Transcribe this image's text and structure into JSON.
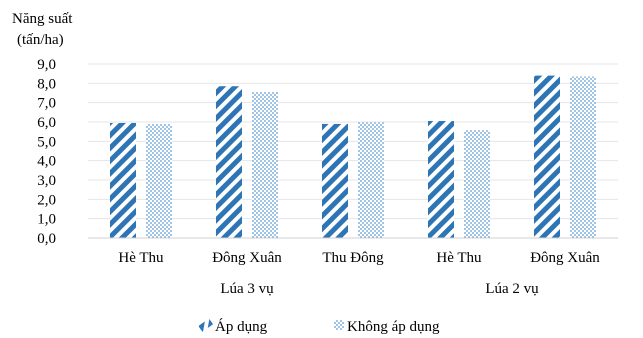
{
  "chart_data": {
    "type": "bar",
    "ylabel_lines": [
      "Năng suất",
      "(tấn/ha)"
    ],
    "ylim": [
      0,
      9
    ],
    "yticks": [
      0,
      1,
      2,
      3,
      4,
      5,
      6,
      7,
      8,
      9
    ],
    "ytick_labels": [
      "0,0",
      "1,0",
      "2,0",
      "3,0",
      "4,0",
      "5,0",
      "6,0",
      "7,0",
      "8,0",
      "9,0"
    ],
    "categories": [
      "Hè Thu",
      "Đông Xuân",
      "Thu Đông",
      "Hè Thu",
      "Đông Xuân"
    ],
    "groups": [
      {
        "label": "Lúa 3 vụ",
        "categories": [
          "Hè Thu",
          "Đông Xuân",
          "Thu Đông"
        ]
      },
      {
        "label": "Lúa 2 vụ",
        "categories": [
          "Hè Thu",
          "Đông Xuân"
        ]
      }
    ],
    "series": [
      {
        "name": "Áp dụng",
        "pattern": "diagonal-stripes",
        "color": "#2e75b6",
        "values": [
          5.95,
          7.85,
          5.9,
          6.05,
          8.4
        ]
      },
      {
        "name": "Không áp dụng",
        "pattern": "dots",
        "color": "#5b9bd5",
        "values": [
          5.9,
          7.55,
          5.98,
          5.58,
          8.35
        ]
      }
    ],
    "grid": true,
    "legend": "bottom"
  }
}
